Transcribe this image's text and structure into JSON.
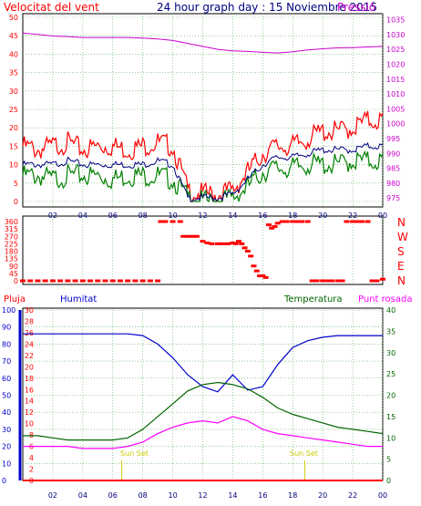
{
  "header": {
    "left_label": "Velocitat del vent",
    "title": "24 hour graph day : 15 Noviembre 2015",
    "right_label": "Pressió"
  },
  "colors": {
    "wind": "#ff0000",
    "wind_avg": "#00007f",
    "gust": "#008000",
    "pressure": "#cc00cc",
    "humidity": "#0000cc",
    "temperature": "#006400",
    "dewpoint": "#ff00ff",
    "rain": "#ff0000",
    "grid": "#55aa55",
    "axis": "#000000"
  },
  "chart_data": [
    {
      "type": "line",
      "title": "24 hour graph day : 15 Noviembre 2015",
      "xlabel": "",
      "ylabel": "Velocitat del vent",
      "y2label": "Pressió",
      "x_ticks": [
        "02",
        "04",
        "06",
        "08",
        "10",
        "12",
        "14",
        "16",
        "18",
        "20",
        "22",
        "00"
      ],
      "ylim": [
        0,
        50
      ],
      "y_ticks": [
        0,
        5,
        10,
        15,
        20,
        25,
        30,
        35,
        40,
        45,
        50
      ],
      "y2lim": [
        972,
        1037
      ],
      "y2_ticks": [
        975,
        980,
        985,
        990,
        995,
        1000,
        1005,
        1010,
        1015,
        1020,
        1025,
        1030,
        1035
      ],
      "grid": true,
      "series": [
        {
          "axis": "y2",
          "x": [
            0,
            1,
            2,
            3,
            4,
            5,
            6,
            7,
            8,
            9,
            10,
            11,
            12,
            13,
            14,
            15,
            16,
            17,
            18,
            19,
            20,
            21,
            22,
            23,
            24
          ],
          "values": [
            1030.5,
            1030,
            1029.5,
            1029.3,
            1029,
            1029,
            1029,
            1029,
            1028.8,
            1028.5,
            1028,
            1027,
            1026,
            1025,
            1024.5,
            1024.3,
            1024,
            1023.8,
            1024.2,
            1024.8,
            1025.2,
            1025.5,
            1025.6,
            1025.8,
            1026
          ]
        },
        {
          "x": [
            0,
            1,
            2,
            3,
            4,
            5,
            6,
            7,
            8,
            9,
            10,
            11,
            12,
            13,
            14,
            15,
            16,
            17,
            18,
            19,
            20,
            21,
            22,
            23,
            24
          ],
          "values": [
            15,
            14,
            15,
            16,
            14,
            15,
            15,
            14,
            15,
            16,
            15,
            3,
            2,
            2,
            3,
            8,
            13,
            15,
            15,
            17,
            19,
            19,
            20,
            22,
            22
          ]
        },
        {
          "x": [
            0,
            1,
            2,
            3,
            4,
            5,
            6,
            7,
            8,
            9,
            10,
            11,
            12,
            13,
            14,
            15,
            16,
            17,
            18,
            19,
            20,
            21,
            22,
            23,
            24
          ],
          "values": [
            10,
            10,
            10,
            11,
            10,
            10,
            10,
            10,
            10,
            11,
            10,
            1,
            1,
            1,
            2,
            6,
            10,
            12,
            12,
            13,
            14,
            14,
            14,
            15,
            15
          ]
        },
        {
          "x": [
            0,
            1,
            2,
            3,
            4,
            5,
            6,
            7,
            8,
            9,
            10,
            11,
            12,
            13,
            14,
            15,
            16,
            17,
            18,
            19,
            20,
            21,
            22,
            23,
            24
          ],
          "values": [
            7,
            7,
            6,
            7,
            7,
            7,
            6,
            7,
            7,
            7,
            6,
            1,
            0,
            0,
            1,
            4,
            8,
            9,
            9,
            10,
            10,
            10,
            11,
            11,
            11
          ]
        }
      ]
    },
    {
      "type": "scatter",
      "title": "",
      "ylabel": "",
      "x_ticks": [
        "02",
        "04",
        "06",
        "08",
        "10",
        "12",
        "14",
        "16",
        "18",
        "20",
        "22",
        "00"
      ],
      "ylim": [
        0,
        360
      ],
      "y_ticks": [
        0,
        45,
        90,
        135,
        180,
        225,
        270,
        315,
        360
      ],
      "direction_labels": [
        "N",
        "W",
        "S",
        "E",
        "N"
      ],
      "series": [
        {
          "x": [
            0,
            0.5,
            1,
            1.5,
            2,
            2.5,
            3,
            3.5,
            4,
            4.5,
            5,
            5.5,
            6,
            6.5,
            7,
            7.5,
            8,
            8.5,
            9,
            9.2,
            9.5,
            10,
            10.5,
            10.7,
            11,
            11.3,
            11.6,
            12,
            12.3,
            12.6,
            13,
            13.2,
            13.5,
            13.7,
            14,
            14.2,
            14.4,
            14.6,
            14.8,
            15,
            15.2,
            15.4,
            15.6,
            15.8,
            16,
            16.2,
            16.4,
            16.6,
            16.8,
            17,
            17.3,
            17.6,
            18,
            18.3,
            18.6,
            19,
            19.3,
            19.6,
            20,
            20.3,
            20.6,
            21,
            21.3,
            21.6,
            22,
            22.3,
            22.6,
            23,
            23.3,
            23.6,
            24
          ],
          "values": [
            0,
            0,
            0,
            0,
            0,
            0,
            0,
            0,
            0,
            0,
            0,
            0,
            0,
            0,
            0,
            0,
            0,
            0,
            0,
            360,
            360,
            360,
            360,
            270,
            270,
            270,
            270,
            240,
            230,
            225,
            225,
            225,
            225,
            225,
            230,
            225,
            240,
            225,
            200,
            180,
            150,
            90,
            60,
            30,
            30,
            20,
            340,
            320,
            330,
            350,
            360,
            360,
            360,
            360,
            360,
            360,
            0,
            0,
            0,
            0,
            0,
            0,
            0,
            360,
            360,
            360,
            360,
            360,
            0,
            0,
            10
          ]
        }
      ]
    },
    {
      "type": "line",
      "title": "",
      "xlabel": "",
      "labels_top": [
        "Pluja",
        "Humitat",
        "Temperatura",
        "Punt rosada"
      ],
      "x_ticks": [
        "02",
        "04",
        "06",
        "08",
        "10",
        "12",
        "14",
        "16",
        "18",
        "20",
        "22",
        "00"
      ],
      "annotations": [
        "Sun Set",
        "Sun Set"
      ],
      "rain_ylim": [
        0,
        30
      ],
      "rain_ticks": [
        0,
        2,
        4,
        6,
        8,
        10,
        12,
        14,
        16,
        18,
        20,
        22,
        24,
        26,
        28,
        30
      ],
      "humidity_ylim": [
        0,
        100
      ],
      "humidity_ticks": [
        0,
        10,
        20,
        30,
        40,
        50,
        60,
        70,
        80,
        90,
        100
      ],
      "temperature_ylim": [
        0,
        40
      ],
      "temperature_ticks": [
        0,
        5,
        10,
        15,
        20,
        25,
        30,
        35,
        40
      ],
      "grid": true,
      "series": [
        {
          "name": "Humitat",
          "axis": "humidity",
          "x": [
            0,
            1,
            2,
            3,
            4,
            5,
            6,
            7,
            8,
            9,
            10,
            11,
            12,
            13,
            14,
            15,
            16,
            17,
            18,
            19,
            20,
            21,
            22,
            23,
            24
          ],
          "values": [
            86,
            86,
            86,
            86,
            86,
            86,
            86,
            86,
            85,
            80,
            72,
            62,
            55,
            52,
            62,
            53,
            55,
            68,
            78,
            82,
            84,
            85,
            85,
            85,
            85
          ]
        },
        {
          "name": "Temperatura",
          "axis": "temperature",
          "x": [
            0,
            1,
            2,
            3,
            4,
            5,
            6,
            7,
            8,
            9,
            10,
            11,
            12,
            13,
            14,
            15,
            16,
            17,
            18,
            19,
            20,
            21,
            22,
            23,
            24
          ],
          "values": [
            10.5,
            10.5,
            10,
            9.5,
            9.5,
            9.5,
            9.5,
            10,
            12,
            15,
            18,
            21,
            22.5,
            23,
            22.5,
            21.5,
            19.5,
            17,
            15.5,
            14.5,
            13.5,
            12.5,
            12,
            11.5,
            11
          ]
        },
        {
          "name": "Punt rosada",
          "axis": "temperature",
          "x": [
            0,
            1,
            2,
            3,
            4,
            5,
            6,
            7,
            8,
            9,
            10,
            11,
            12,
            13,
            14,
            15,
            16,
            17,
            18,
            19,
            20,
            21,
            22,
            23,
            24
          ],
          "values": [
            8,
            8,
            8,
            8,
            7.5,
            7.5,
            7.5,
            8,
            9,
            11,
            12.5,
            13.5,
            14,
            13.5,
            15,
            14,
            12,
            11,
            10.5,
            10,
            9.5,
            9,
            8.5,
            8,
            8
          ]
        },
        {
          "name": "Pluja",
          "axis": "rain",
          "x": [
            0,
            24
          ],
          "values": [
            0,
            0
          ]
        }
      ]
    }
  ]
}
